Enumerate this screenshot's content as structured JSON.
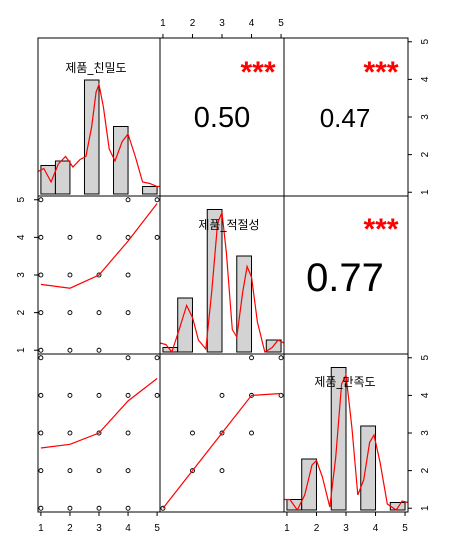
{
  "chart_data": {
    "type": "scatter-matrix",
    "variables": [
      "제품_친밀도",
      "제품_적절성",
      "제품_만족도"
    ],
    "axis_ticks": [
      "1",
      "2",
      "3",
      "4",
      "5"
    ],
    "axis_range": [
      0.9,
      5.1
    ],
    "histograms": [
      {
        "variable": "제품_친밀도",
        "bars": [
          {
            "x0": 1.0,
            "x1": 1.5,
            "height": 0.19
          },
          {
            "x0": 1.5,
            "x1": 2.0,
            "height": 0.22
          },
          {
            "x0": 2.5,
            "x1": 3.0,
            "height": 0.76
          },
          {
            "x0": 3.5,
            "x1": 4.0,
            "height": 0.45
          },
          {
            "x0": 4.5,
            "x1": 5.0,
            "height": 0.05
          }
        ],
        "density": [
          [
            0.9,
            0.15
          ],
          [
            1.1,
            0.17
          ],
          [
            1.35,
            0.08
          ],
          [
            1.6,
            0.2
          ],
          [
            1.85,
            0.25
          ],
          [
            2.1,
            0.18
          ],
          [
            2.35,
            0.23
          ],
          [
            2.55,
            0.25
          ],
          [
            2.75,
            0.45
          ],
          [
            2.9,
            0.68
          ],
          [
            3.0,
            0.73
          ],
          [
            3.15,
            0.58
          ],
          [
            3.35,
            0.3
          ],
          [
            3.55,
            0.22
          ],
          [
            3.8,
            0.35
          ],
          [
            4.0,
            0.4
          ],
          [
            4.25,
            0.25
          ],
          [
            4.5,
            0.08
          ],
          [
            4.75,
            0.07
          ],
          [
            5.0,
            0.05
          ],
          [
            5.1,
            0.05
          ]
        ]
      },
      {
        "variable": "제품_적절성",
        "bars": [
          {
            "x0": 1.0,
            "x1": 1.5,
            "height": 0.03
          },
          {
            "x0": 1.5,
            "x1": 2.0,
            "height": 0.36
          },
          {
            "x0": 2.5,
            "x1": 3.0,
            "height": 0.95
          },
          {
            "x0": 3.5,
            "x1": 4.0,
            "height": 0.64
          },
          {
            "x0": 4.5,
            "x1": 5.0,
            "height": 0.08
          }
        ],
        "density": [
          [
            0.9,
            0.06
          ],
          [
            1.1,
            0.05
          ],
          [
            1.3,
            0.0
          ],
          [
            1.55,
            0.15
          ],
          [
            1.8,
            0.31
          ],
          [
            2.0,
            0.23
          ],
          [
            2.2,
            0.08
          ],
          [
            2.45,
            0.02
          ],
          [
            2.65,
            0.4
          ],
          [
            2.85,
            0.86
          ],
          [
            3.0,
            0.93
          ],
          [
            3.15,
            0.66
          ],
          [
            3.35,
            0.15
          ],
          [
            3.5,
            0.1
          ],
          [
            3.7,
            0.4
          ],
          [
            3.85,
            0.57
          ],
          [
            4.0,
            0.5
          ],
          [
            4.2,
            0.2
          ],
          [
            4.45,
            0.0
          ],
          [
            4.7,
            0.03
          ],
          [
            4.9,
            0.08
          ],
          [
            5.1,
            0.06
          ]
        ]
      },
      {
        "variable": "제품_만족도",
        "bars": [
          {
            "x0": 1.0,
            "x1": 1.5,
            "height": 0.07
          },
          {
            "x0": 1.5,
            "x1": 2.0,
            "height": 0.34
          },
          {
            "x0": 2.5,
            "x1": 3.0,
            "height": 0.95
          },
          {
            "x0": 3.5,
            "x1": 4.0,
            "height": 0.56
          },
          {
            "x0": 4.5,
            "x1": 5.0,
            "height": 0.05
          }
        ],
        "density": [
          [
            0.9,
            0.07
          ],
          [
            1.1,
            0.07
          ],
          [
            1.35,
            0.0
          ],
          [
            1.6,
            0.1
          ],
          [
            1.85,
            0.3
          ],
          [
            2.0,
            0.33
          ],
          [
            2.2,
            0.22
          ],
          [
            2.45,
            0.02
          ],
          [
            2.65,
            0.35
          ],
          [
            2.85,
            0.84
          ],
          [
            3.0,
            0.9
          ],
          [
            3.2,
            0.55
          ],
          [
            3.4,
            0.1
          ],
          [
            3.6,
            0.2
          ],
          [
            3.8,
            0.45
          ],
          [
            3.95,
            0.5
          ],
          [
            4.15,
            0.32
          ],
          [
            4.4,
            0.04
          ],
          [
            4.7,
            0.0
          ],
          [
            4.9,
            0.06
          ],
          [
            5.1,
            0.05
          ]
        ]
      }
    ],
    "correlations": [
      {
        "row": 0,
        "col": 1,
        "value": "0.50",
        "stars": "***",
        "size": "small"
      },
      {
        "row": 0,
        "col": 2,
        "value": "0.47",
        "stars": "***",
        "size": "small"
      },
      {
        "row": 1,
        "col": 2,
        "value": "0.77",
        "stars": "***",
        "size": "large"
      }
    ],
    "scatters": [
      {
        "row": 1,
        "col": 0,
        "points": [
          [
            1,
            1
          ],
          [
            2,
            1
          ],
          [
            3,
            1
          ],
          [
            1,
            2
          ],
          [
            2,
            2
          ],
          [
            3,
            2
          ],
          [
            4,
            2
          ],
          [
            1,
            3
          ],
          [
            2,
            3
          ],
          [
            3,
            3
          ],
          [
            4,
            3
          ],
          [
            1,
            4
          ],
          [
            2,
            4
          ],
          [
            3,
            4
          ],
          [
            4,
            4
          ],
          [
            5,
            4
          ],
          [
            1,
            5
          ],
          [
            4,
            5
          ],
          [
            5,
            5
          ]
        ],
        "smooth": [
          [
            1,
            2.75
          ],
          [
            2,
            2.65
          ],
          [
            3,
            3.0
          ],
          [
            4,
            3.9
          ],
          [
            5,
            4.9
          ]
        ]
      },
      {
        "row": 2,
        "col": 0,
        "points": [
          [
            1,
            1
          ],
          [
            2,
            1
          ],
          [
            3,
            1
          ],
          [
            4,
            1
          ],
          [
            1,
            2
          ],
          [
            2,
            2
          ],
          [
            3,
            2
          ],
          [
            4,
            2
          ],
          [
            1,
            3
          ],
          [
            2,
            3
          ],
          [
            3,
            3
          ],
          [
            4,
            3
          ],
          [
            1,
            4
          ],
          [
            2,
            4
          ],
          [
            3,
            4
          ],
          [
            4,
            4
          ],
          [
            5,
            4
          ],
          [
            1,
            5
          ],
          [
            4,
            5
          ],
          [
            5,
            5
          ]
        ],
        "smooth": [
          [
            1,
            2.6
          ],
          [
            2,
            2.7
          ],
          [
            3,
            3.0
          ],
          [
            4,
            3.85
          ],
          [
            5,
            4.45
          ]
        ]
      },
      {
        "row": 2,
        "col": 1,
        "points": [
          [
            1,
            1
          ],
          [
            2,
            2
          ],
          [
            3,
            2
          ],
          [
            2,
            3
          ],
          [
            3,
            3
          ],
          [
            4,
            3
          ],
          [
            3,
            4
          ],
          [
            4,
            4
          ],
          [
            5,
            4
          ],
          [
            4,
            5
          ],
          [
            5,
            5
          ]
        ],
        "smooth": [
          [
            1,
            1.0
          ],
          [
            2,
            2.0
          ],
          [
            3,
            3.0
          ],
          [
            4,
            4.0
          ],
          [
            5,
            4.05
          ]
        ]
      }
    ]
  }
}
